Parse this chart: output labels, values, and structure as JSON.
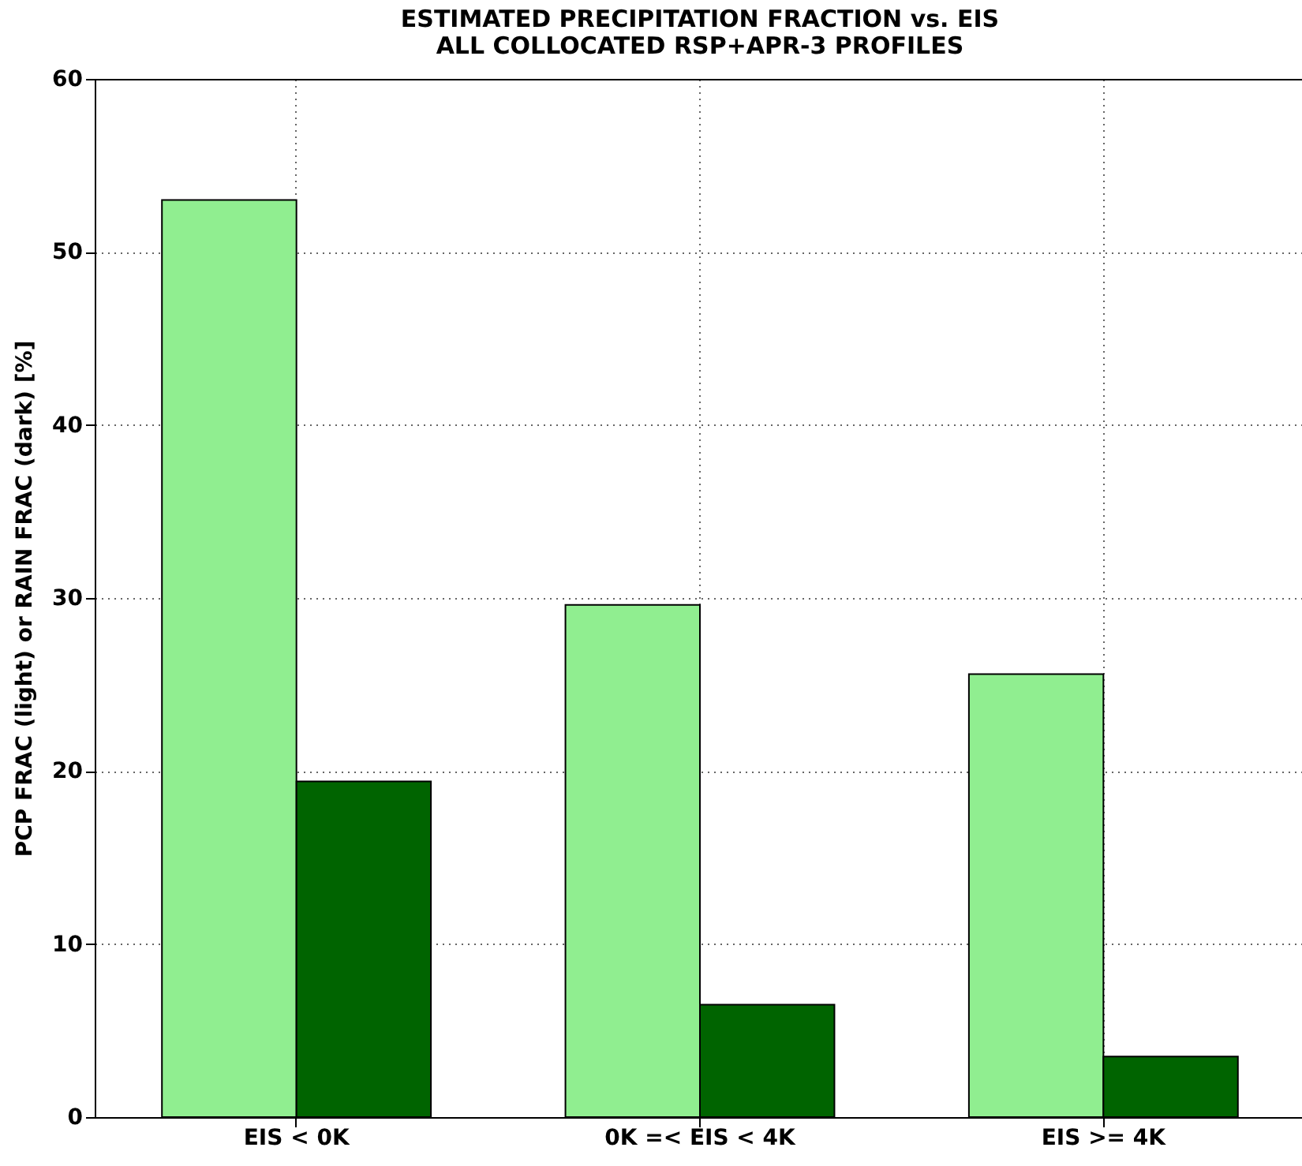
{
  "chart_data": {
    "type": "bar",
    "title": "ESTIMATED PRECIPITATION FRACTION vs. EIS",
    "subtitle": "ALL COLLOCATED RSP+APR-3 PROFILES",
    "ylabel": "PCP FRAC (light) or RAIN FRAC (dark) [%]",
    "categories": [
      "EIS < 0K",
      "0K =< EIS < 4K",
      "EIS >= 4K"
    ],
    "series": [
      {
        "color": "#90ee90",
        "values": [
          53,
          29.6,
          25.6
        ]
      },
      {
        "color": "#006400",
        "values": [
          19.4,
          6.5,
          3.5
        ]
      }
    ],
    "ylim": [
      0,
      60
    ],
    "yticks": [
      0,
      10,
      20,
      30,
      40,
      50,
      60
    ],
    "grid": true
  }
}
